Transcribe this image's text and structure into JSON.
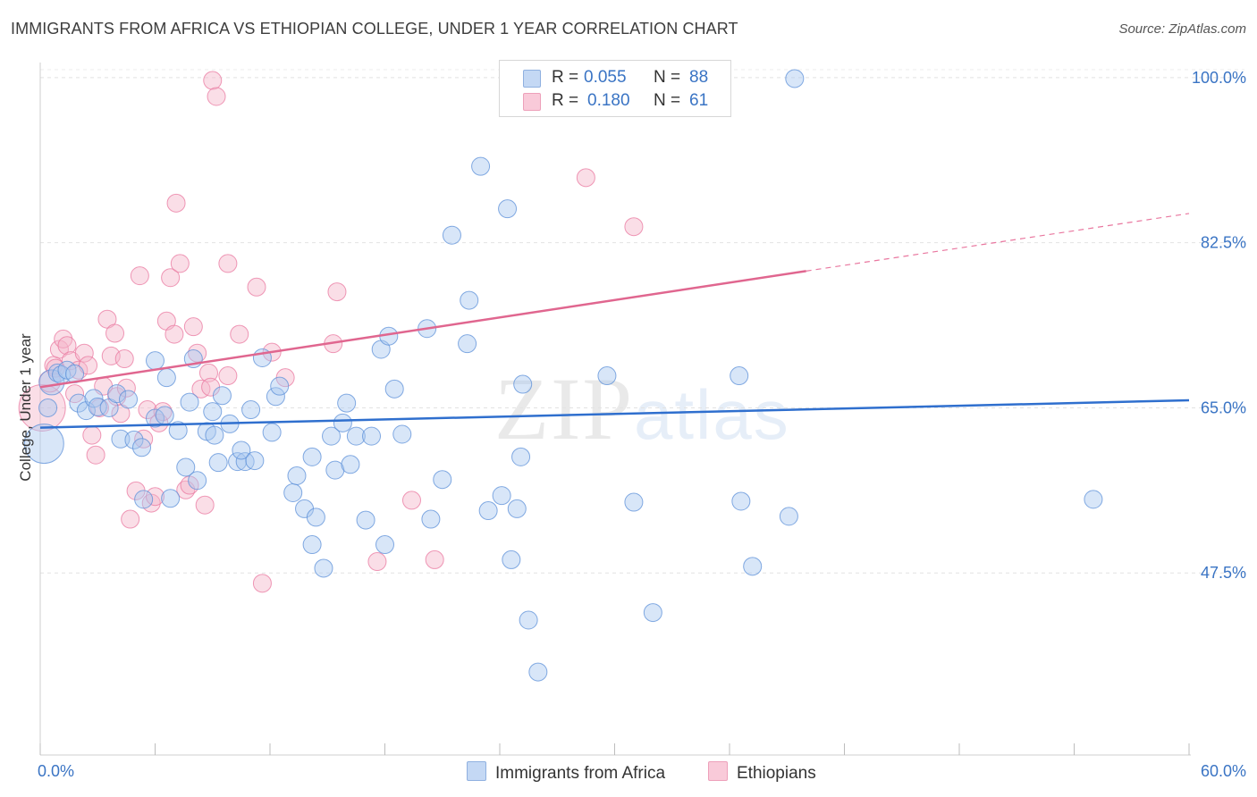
{
  "header": {
    "title": "IMMIGRANTS FROM AFRICA VS ETHIOPIAN COLLEGE, UNDER 1 YEAR CORRELATION CHART",
    "source": "Source: ZipAtlas.com"
  },
  "watermark": {
    "zip": "ZIP",
    "atlas": "atlas"
  },
  "legend": {
    "rows": [
      {
        "r_label": "R =",
        "r_value": "0.055",
        "n_label": "N =",
        "n_value": "88",
        "color": "#a9c7ef"
      },
      {
        "r_label": "R =",
        "r_value": "0.180",
        "n_label": "N =",
        "n_value": "61",
        "color": "#f5b6ca"
      }
    ]
  },
  "bottom_legend": {
    "series1": "Immigrants from Africa",
    "series2": "Ethiopians"
  },
  "axes": {
    "ylabel": "College, Under 1 year",
    "x_min_label": "0.0%",
    "x_max_label": "60.0%",
    "y_tick_labels": [
      "100.0%",
      "82.5%",
      "65.0%",
      "47.5%"
    ]
  },
  "chart_data": {
    "type": "scatter",
    "title": "IMMIGRANTS FROM AFRICA VS ETHIOPIAN COLLEGE, UNDER 1 YEAR CORRELATION CHART",
    "xlabel": "",
    "ylabel": "College, Under 1 year",
    "xlim": [
      0,
      60
    ],
    "ylim": [
      28.2,
      101.6
    ],
    "y_ticks": [
      100.0,
      82.5,
      65.0,
      47.5
    ],
    "grid": true,
    "legend_position": "top-center",
    "series": [
      {
        "name": "Immigrants from Africa",
        "color": "#5b8fd8",
        "fill": "#a9c7ef",
        "R": 0.055,
        "N": 88,
        "trend": {
          "x": [
            0,
            60
          ],
          "y": [
            62.9,
            65.8
          ]
        },
        "points": [
          [
            0.2,
            61.2,
            22
          ],
          [
            0.6,
            67.7,
            14
          ],
          [
            0.9,
            68.7,
            10
          ],
          [
            1.1,
            68.5,
            10
          ],
          [
            1.4,
            69.0,
            10
          ],
          [
            1.8,
            68.6,
            10
          ],
          [
            0.4,
            65.0,
            10
          ],
          [
            2.0,
            65.5,
            10
          ],
          [
            2.4,
            64.7,
            10
          ],
          [
            2.8,
            66.0,
            10
          ],
          [
            3.0,
            65.1,
            10
          ],
          [
            3.6,
            65.0,
            10
          ],
          [
            4.0,
            66.5,
            10
          ],
          [
            4.6,
            65.9,
            10
          ],
          [
            4.2,
            61.7,
            10
          ],
          [
            4.9,
            61.6,
            10
          ],
          [
            5.3,
            60.8,
            10
          ],
          [
            5.4,
            55.3,
            10
          ],
          [
            6.0,
            63.9,
            10
          ],
          [
            6.5,
            64.2,
            10
          ],
          [
            6.0,
            70.0,
            10
          ],
          [
            6.6,
            68.2,
            10
          ],
          [
            6.8,
            55.4,
            10
          ],
          [
            7.2,
            62.6,
            10
          ],
          [
            7.8,
            65.6,
            10
          ],
          [
            7.6,
            58.7,
            10
          ],
          [
            8.2,
            57.3,
            10
          ],
          [
            8.0,
            70.2,
            10
          ],
          [
            8.7,
            62.5,
            10
          ],
          [
            9.1,
            62.1,
            10
          ],
          [
            9.0,
            64.6,
            10
          ],
          [
            9.3,
            59.2,
            10
          ],
          [
            9.5,
            66.3,
            10
          ],
          [
            9.9,
            63.3,
            10
          ],
          [
            10.3,
            59.3,
            10
          ],
          [
            10.7,
            59.3,
            10
          ],
          [
            10.5,
            60.5,
            10
          ],
          [
            11.2,
            59.4,
            10
          ],
          [
            11.0,
            64.8,
            10
          ],
          [
            11.6,
            70.3,
            10
          ],
          [
            12.1,
            62.4,
            10
          ],
          [
            12.3,
            66.2,
            10
          ],
          [
            12.5,
            67.3,
            10
          ],
          [
            13.2,
            56.0,
            10
          ],
          [
            13.4,
            57.8,
            10
          ],
          [
            13.8,
            54.3,
            10
          ],
          [
            14.2,
            59.8,
            10
          ],
          [
            14.4,
            53.4,
            10
          ],
          [
            14.8,
            48.0,
            10
          ],
          [
            14.2,
            50.5,
            10
          ],
          [
            15.2,
            62.0,
            10
          ],
          [
            15.4,
            58.4,
            10
          ],
          [
            15.8,
            63.4,
            10
          ],
          [
            16.0,
            65.5,
            10
          ],
          [
            16.2,
            59.0,
            10
          ],
          [
            16.5,
            62.0,
            10
          ],
          [
            17.0,
            53.1,
            10
          ],
          [
            17.3,
            62.0,
            10
          ],
          [
            17.8,
            71.2,
            10
          ],
          [
            18.2,
            72.6,
            10
          ],
          [
            18.5,
            67.0,
            10
          ],
          [
            18.9,
            62.2,
            10
          ],
          [
            20.2,
            73.4,
            10
          ],
          [
            20.4,
            53.2,
            10
          ],
          [
            18.0,
            50.5,
            10
          ],
          [
            21.0,
            57.4,
            10
          ],
          [
            22.3,
            71.8,
            10
          ],
          [
            22.4,
            76.4,
            10
          ],
          [
            21.5,
            83.3,
            10
          ],
          [
            23.0,
            90.6,
            10
          ],
          [
            24.1,
            55.7,
            10
          ],
          [
            24.4,
            86.1,
            10
          ],
          [
            24.6,
            48.9,
            10
          ],
          [
            24.9,
            54.3,
            10
          ],
          [
            25.1,
            59.8,
            10
          ],
          [
            25.2,
            67.5,
            10
          ],
          [
            23.4,
            54.1,
            10
          ],
          [
            25.5,
            42.5,
            10
          ],
          [
            26.0,
            37.0,
            10
          ],
          [
            29.6,
            68.4,
            10
          ],
          [
            31.0,
            55.0,
            10
          ],
          [
            32.0,
            43.3,
            10
          ],
          [
            36.5,
            68.4,
            10
          ],
          [
            36.6,
            55.1,
            10
          ],
          [
            37.2,
            48.2,
            10
          ],
          [
            39.1,
            53.5,
            10
          ],
          [
            39.4,
            99.9,
            10
          ],
          [
            55.0,
            55.3,
            10
          ]
        ]
      },
      {
        "name": "Ethiopians",
        "color": "#e9779f",
        "fill": "#f5b6ca",
        "R": 0.18,
        "N": 61,
        "trend": {
          "x": [
            0,
            40
          ],
          "y": [
            67.2,
            79.5
          ]
        },
        "trend_dashed": {
          "x": [
            40,
            60
          ],
          "y": [
            79.5,
            85.6
          ]
        },
        "points": [
          [
            0.1,
            65.0,
            26
          ],
          [
            0.5,
            67.8,
            12
          ],
          [
            0.7,
            69.5,
            10
          ],
          [
            0.8,
            69.2,
            10
          ],
          [
            1.0,
            71.2,
            10
          ],
          [
            1.2,
            72.3,
            10
          ],
          [
            1.4,
            71.6,
            10
          ],
          [
            1.6,
            70.0,
            10
          ],
          [
            1.8,
            66.5,
            10
          ],
          [
            2.0,
            69.0,
            10
          ],
          [
            2.3,
            70.8,
            10
          ],
          [
            2.5,
            69.5,
            10
          ],
          [
            2.7,
            62.1,
            10
          ],
          [
            2.9,
            60.0,
            10
          ],
          [
            3.1,
            65.0,
            10
          ],
          [
            3.3,
            67.3,
            10
          ],
          [
            3.5,
            74.4,
            10
          ],
          [
            3.7,
            70.5,
            10
          ],
          [
            3.9,
            72.9,
            10
          ],
          [
            4.0,
            66.2,
            10
          ],
          [
            4.2,
            64.4,
            10
          ],
          [
            4.4,
            70.2,
            10
          ],
          [
            4.5,
            67.1,
            10
          ],
          [
            4.7,
            53.2,
            10
          ],
          [
            5.0,
            56.2,
            10
          ],
          [
            5.2,
            79.0,
            10
          ],
          [
            5.4,
            61.7,
            10
          ],
          [
            5.6,
            64.8,
            10
          ],
          [
            5.8,
            54.9,
            10
          ],
          [
            6.0,
            55.6,
            10
          ],
          [
            6.2,
            63.4,
            10
          ],
          [
            6.4,
            64.6,
            10
          ],
          [
            6.6,
            74.2,
            10
          ],
          [
            6.8,
            78.8,
            10
          ],
          [
            7.0,
            72.8,
            10
          ],
          [
            7.1,
            86.7,
            10
          ],
          [
            7.3,
            80.3,
            10
          ],
          [
            7.6,
            56.3,
            10
          ],
          [
            7.8,
            56.8,
            10
          ],
          [
            8.0,
            73.6,
            10
          ],
          [
            8.2,
            70.8,
            10
          ],
          [
            8.4,
            67.0,
            10
          ],
          [
            8.6,
            54.7,
            10
          ],
          [
            8.8,
            68.7,
            10
          ],
          [
            8.9,
            67.2,
            10
          ],
          [
            9.0,
            99.7,
            10
          ],
          [
            9.2,
            98.0,
            10
          ],
          [
            9.8,
            68.4,
            10
          ],
          [
            9.8,
            80.3,
            10
          ],
          [
            10.4,
            72.8,
            10
          ],
          [
            11.3,
            77.8,
            10
          ],
          [
            11.6,
            46.4,
            10
          ],
          [
            12.1,
            70.9,
            10
          ],
          [
            15.3,
            71.8,
            10
          ],
          [
            15.5,
            77.3,
            10
          ],
          [
            17.6,
            48.7,
            10
          ],
          [
            19.4,
            55.2,
            10
          ],
          [
            20.6,
            48.9,
            10
          ],
          [
            28.5,
            89.4,
            10
          ],
          [
            31.0,
            84.2,
            10
          ],
          [
            12.8,
            68.2,
            10
          ]
        ]
      }
    ]
  }
}
